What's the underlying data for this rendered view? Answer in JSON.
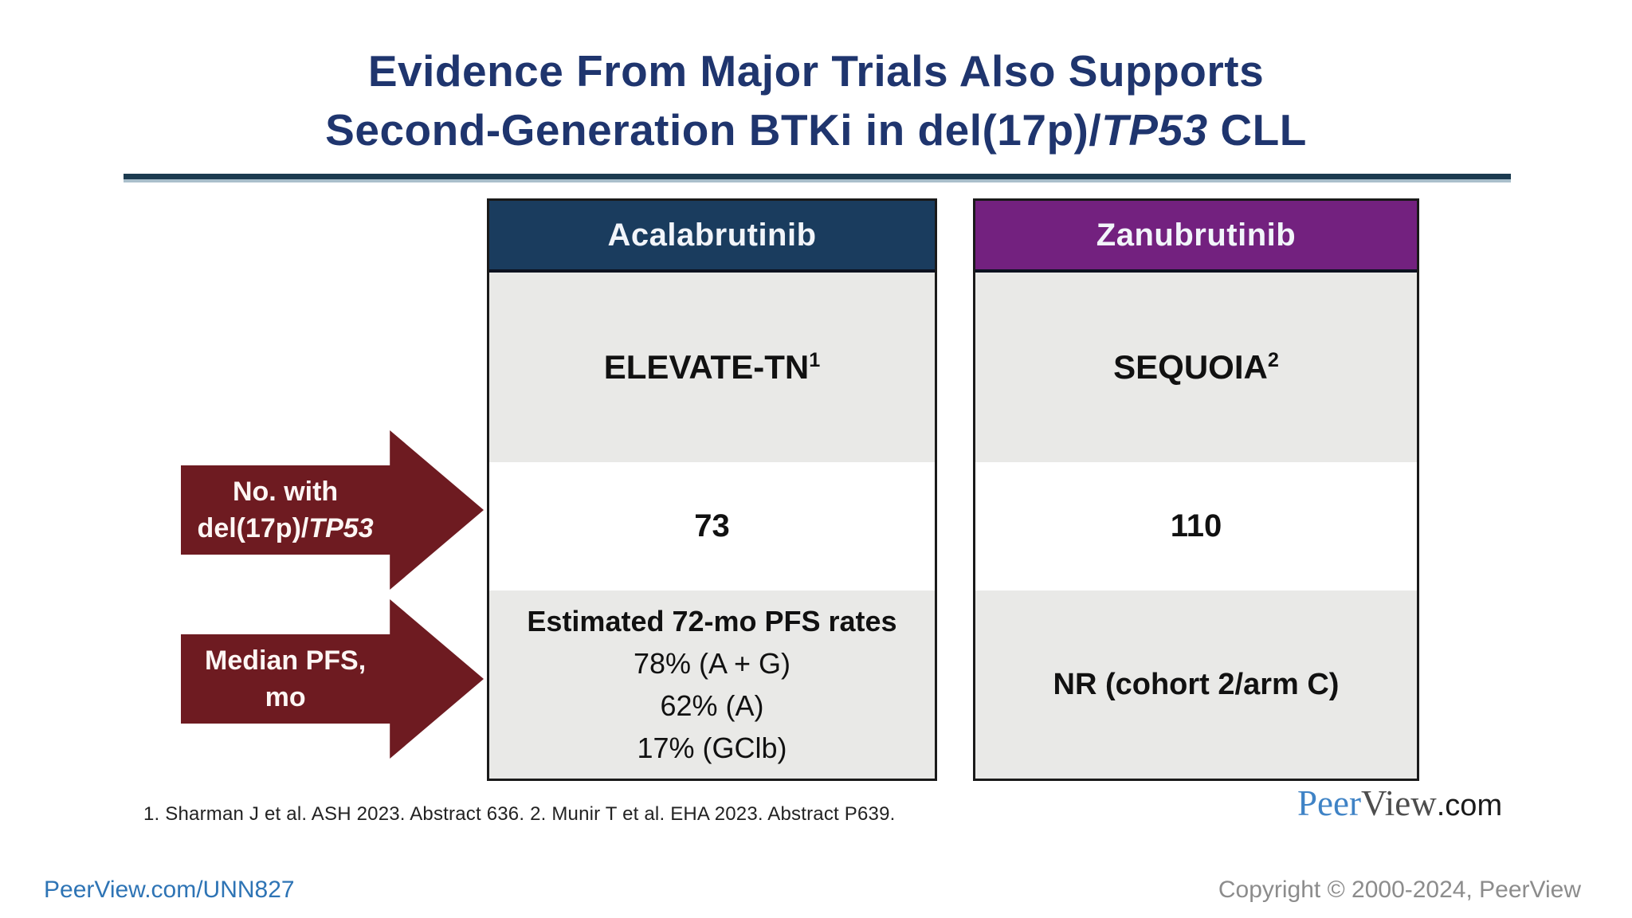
{
  "title": {
    "line1": "Evidence From Major Trials Also Supports",
    "line2_pre": "Second-Generation BTKi in del(17p)/",
    "line2_italic": "TP53",
    "line2_post": " CLL"
  },
  "table": {
    "columns": [
      {
        "header": "Acalabrutinib",
        "header_bg": "#1a3c5e",
        "trial": "ELEVATE-TN",
        "trial_sup": "1",
        "n_with_del17p_tp53": "73",
        "pfs_lines": [
          "Estimated 72-mo PFS rates",
          "78% (A + G)",
          "62% (A)",
          "17% (GClb)"
        ]
      },
      {
        "header": "Zanubrutinib",
        "header_bg": "#73217f",
        "trial": "SEQUOIA",
        "trial_sup": "2",
        "n_with_del17p_tp53": "110",
        "pfs_lines": [
          "NR (cohort 2/arm C)"
        ]
      }
    ]
  },
  "arrows": [
    {
      "line1": "No. with",
      "line2_pre": "del(17p)/",
      "line2_italic": "TP53",
      "color": "#6e1b21"
    },
    {
      "line1": "Median PFS, mo",
      "color": "#6e1b21"
    }
  ],
  "footnote": "1. Sharman J et al. ASH 2023. Abstract 636. 2. Munir T et al. EHA 2023. Abstract P639.",
  "logo": {
    "peer": "Peer",
    "view": "View",
    "com": ".com"
  },
  "footer": {
    "link": "PeerView.com/UNN827",
    "copyright": "Copyright © 2000-2024, PeerView"
  },
  "colors": {
    "title_navy": "#1f356e",
    "header_navy": "#1a3c5e",
    "header_purple": "#73217f",
    "arrow_maroon": "#6e1b21",
    "cell_gray": "#e9e9e7",
    "link_blue": "#2e74b5",
    "copyright_gray": "#8c8c8c"
  }
}
